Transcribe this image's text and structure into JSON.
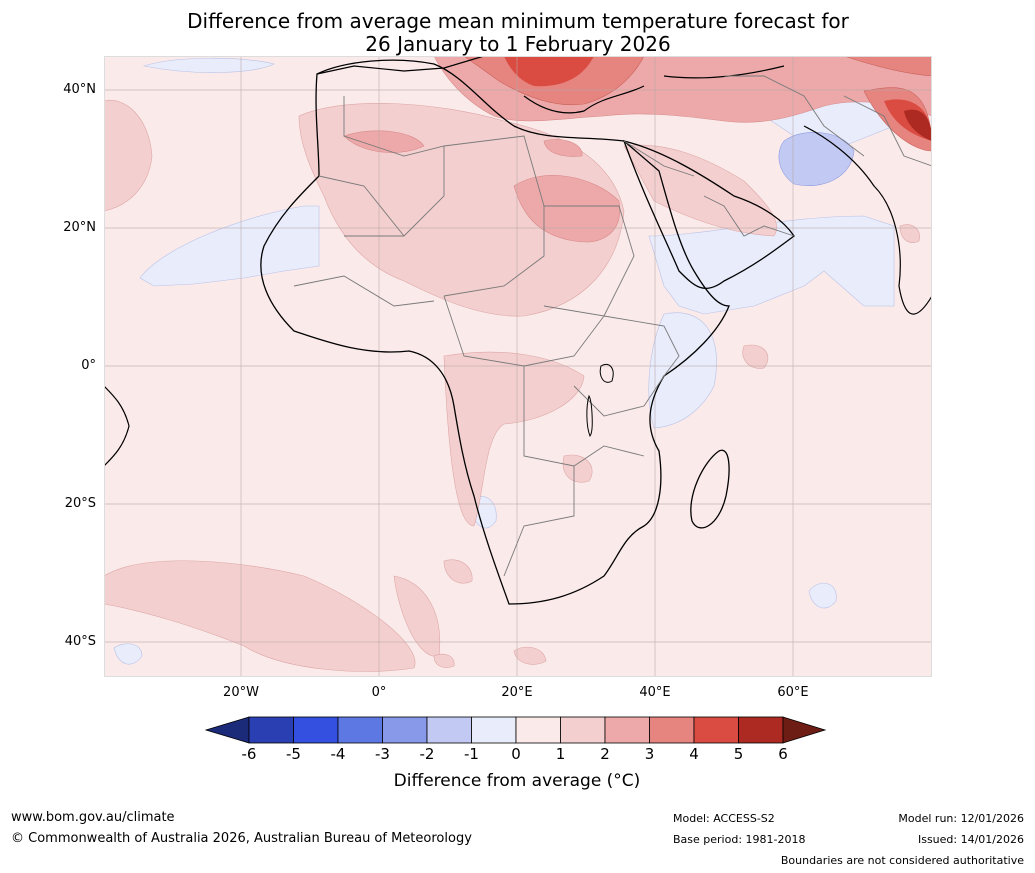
{
  "title": {
    "line1": "Difference from average mean minimum temperature forecast for",
    "line2": "26 January to 1 February 2026"
  },
  "map": {
    "region": "Africa",
    "lat_ticks": [
      "40°N",
      "20°N",
      "0°",
      "20°S",
      "40°S"
    ],
    "lon_ticks": [
      "20°W",
      "0°",
      "20°E",
      "40°E",
      "60°E"
    ]
  },
  "colorbar": {
    "ticks": [
      "-6",
      "-5",
      "-4",
      "-3",
      "-2",
      "-1",
      "0",
      "1",
      "2",
      "3",
      "4",
      "5",
      "6"
    ],
    "label": "Difference from average (°C)",
    "colors": [
      "#1c2a7a",
      "#2a3fb2",
      "#3350e0",
      "#5e78e3",
      "#8799e8",
      "#c2c9f3",
      "#e8ecfb",
      "#fbeaea",
      "#f4cfcf",
      "#eda9a9",
      "#e6847f",
      "#da4c41",
      "#ad2a22",
      "#6e1d14"
    ]
  },
  "footer": {
    "website": "www.bom.gov.au/climate",
    "copyright": "© Commonwealth of Australia 2026, Australian Bureau of Meteorology",
    "model": "Model: ACCESS-S2",
    "base_period": "Base period: 1981-2018",
    "model_run": "Model run: 12/01/2026",
    "issued": "Issued: 14/01/2026",
    "disclaimer": "Boundaries are not considered authoritative"
  }
}
